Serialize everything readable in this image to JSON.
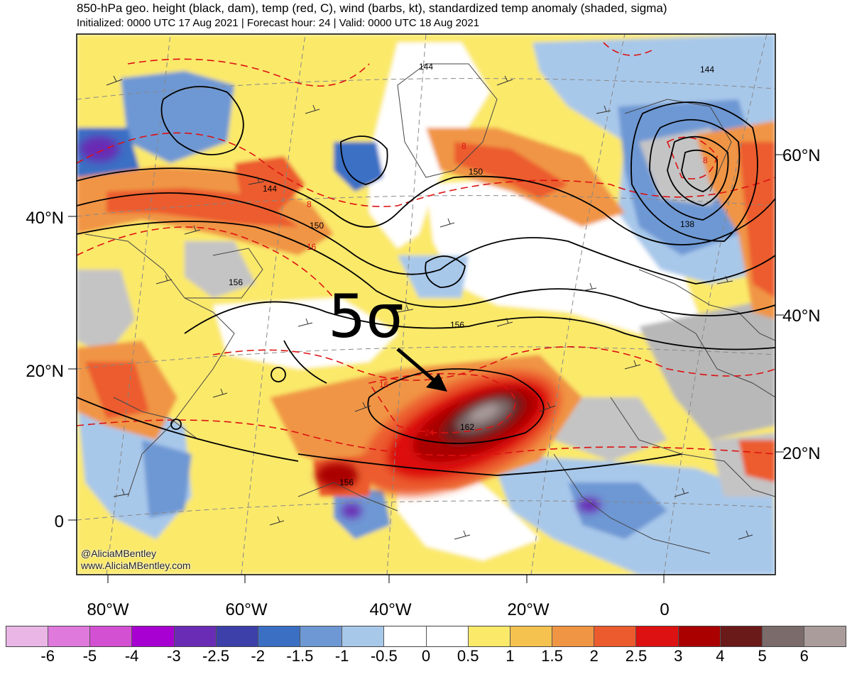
{
  "header": {
    "title": "850-hPa geo. height (black, dam), temp (red, C), wind (barbs, kt), standardized temp anomaly (shaded, sigma)",
    "subtitle": "Initialized: 0000 UTC 17 Aug 2021 | Forecast hour: 24 | Valid: 0000 UTC 18 Aug 2021"
  },
  "map": {
    "lat_labels_left": [
      "40°N",
      "20°N",
      "0"
    ],
    "lat_labels_right": [
      "60°N",
      "40°N",
      "20°N"
    ],
    "lon_labels": [
      "80°W",
      "60°W",
      "40°W",
      "20°W",
      "0"
    ],
    "height_contour_labels": [
      "144",
      "144",
      "150",
      "150",
      "156",
      "156",
      "156",
      "162",
      "144",
      "138"
    ],
    "temp_contour_labels": [
      "8",
      "16",
      "16",
      "24",
      "8",
      "8"
    ],
    "annotation": "5σ",
    "credit": [
      "@AliciaMBentley",
      "www.AliciaMBentley.com"
    ]
  },
  "colorbar": {
    "labels": [
      "-6",
      "-5",
      "-4",
      "-3",
      "-2.5",
      "-2",
      "-1.5",
      "-1",
      "-0.5",
      "0",
      "0.5",
      "1",
      "1.5",
      "2",
      "2.5",
      "3",
      "4",
      "5",
      "6"
    ],
    "colors": [
      "#eab6e6",
      "#df79dc",
      "#d450d2",
      "#a800d2",
      "#6a2cb4",
      "#3c40a8",
      "#3a6fc4",
      "#6e98d4",
      "#a8c8ea",
      "#ffffff",
      "#ffffff",
      "#fbe96a",
      "#f5c24f",
      "#f09544",
      "#ec5b2e",
      "#dd1111",
      "#aa0000",
      "#6b1a1a",
      "#7b6b6b",
      "#ab9c9c"
    ]
  }
}
